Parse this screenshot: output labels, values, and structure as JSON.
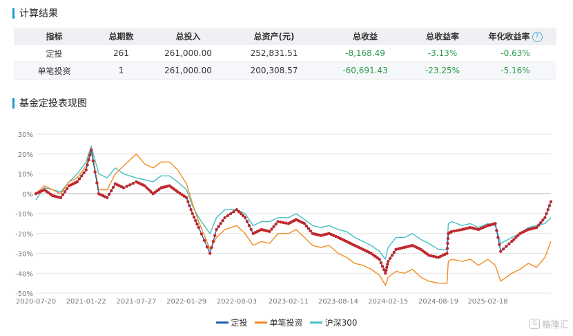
{
  "section1": {
    "title": "计算结果"
  },
  "section2": {
    "title": "基金定投表现图"
  },
  "table": {
    "headers": [
      "指标",
      "总期数",
      "总投入",
      "总资产(元)",
      "总收益",
      "总收益率",
      "年化收益率"
    ],
    "help_icon": "question-circle-icon",
    "rows": [
      [
        "定投",
        "261",
        "261,000.00",
        "252,831.51",
        "-8,168.49",
        "-3.13%",
        "-0.63%"
      ],
      [
        "单笔投资",
        "1",
        "261,000.00",
        "200,308.57",
        "-60,691.43",
        "-23.25%",
        "-5.16%"
      ]
    ]
  },
  "watermark": {
    "icon": "gelonghui-logo-icon",
    "text": "格隆汇"
  },
  "chart_data": {
    "type": "line",
    "ylim": [
      -50,
      30
    ],
    "yticks": [
      "30%",
      "20%",
      "10%",
      "0%",
      "-10%",
      "-20%",
      "-30%",
      "-40%",
      "-50%"
    ],
    "xticks": [
      "2020-07-20",
      "2021-01-22",
      "2021-07-27",
      "2022-01-29",
      "2022-08-03",
      "2023-02-11",
      "2023-08-14",
      "2024-02-15",
      "2024-08-19",
      "2025-02-18"
    ],
    "x_range": [
      "2020-07-20",
      "2025-10-10"
    ],
    "grid": true,
    "legend_position": "bottom",
    "series": [
      {
        "name": "定投",
        "color": "#1f5fa8",
        "marker_color": "#c0282d",
        "x": [
          "2020-07-20",
          "2020-08-20",
          "2020-09-20",
          "2020-10-20",
          "2020-11-20",
          "2020-12-20",
          "2021-01-22",
          "2021-02-10",
          "2021-03-10",
          "2021-04-10",
          "2021-05-10",
          "2021-06-10",
          "2021-07-27",
          "2021-08-27",
          "2021-09-27",
          "2021-10-27",
          "2021-11-27",
          "2021-12-27",
          "2022-01-29",
          "2022-02-20",
          "2022-03-15",
          "2022-04-26",
          "2022-05-20",
          "2022-06-20",
          "2022-08-03",
          "2022-09-03",
          "2022-10-03",
          "2022-11-03",
          "2022-12-03",
          "2023-01-03",
          "2023-02-11",
          "2023-03-11",
          "2023-04-11",
          "2023-05-11",
          "2023-06-11",
          "2023-07-11",
          "2023-08-14",
          "2023-09-14",
          "2023-10-14",
          "2023-11-14",
          "2023-12-14",
          "2024-01-14",
          "2024-02-05",
          "2024-02-15",
          "2024-03-15",
          "2024-04-15",
          "2024-05-15",
          "2024-06-15",
          "2024-07-15",
          "2024-08-19",
          "2024-09-20",
          "2024-09-25",
          "2024-10-08",
          "2024-11-15",
          "2024-12-15",
          "2025-01-15",
          "2025-02-18",
          "2025-03-18",
          "2025-04-07",
          "2025-05-18",
          "2025-06-18",
          "2025-07-18",
          "2025-08-18",
          "2025-09-18",
          "2025-10-10"
        ],
        "values": [
          0,
          2,
          -1,
          -2,
          4,
          6,
          12,
          22,
          0,
          -2,
          5,
          3,
          6,
          4,
          0,
          3,
          4,
          1,
          -2,
          -10,
          -17,
          -30,
          -18,
          -12,
          -8,
          -12,
          -20,
          -18,
          -19,
          -14,
          -15,
          -13,
          -15,
          -20,
          -21,
          -20,
          -22,
          -24,
          -26,
          -28,
          -30,
          -33,
          -40,
          -34,
          -28,
          -27,
          -26,
          -28,
          -31,
          -32,
          -30,
          -20,
          -19,
          -18,
          -17,
          -18,
          -16,
          -15,
          -29,
          -24,
          -20,
          -18,
          -17,
          -12,
          -4
        ]
      },
      {
        "name": "单笔投资",
        "color": "#f08c1e",
        "x": [
          "2020-07-20",
          "2020-08-20",
          "2020-09-20",
          "2020-10-20",
          "2020-11-20",
          "2020-12-20",
          "2021-01-22",
          "2021-02-10",
          "2021-03-10",
          "2021-04-10",
          "2021-05-10",
          "2021-06-10",
          "2021-07-27",
          "2021-08-27",
          "2021-09-27",
          "2021-10-27",
          "2021-11-27",
          "2021-12-27",
          "2022-01-29",
          "2022-02-20",
          "2022-03-15",
          "2022-04-26",
          "2022-05-20",
          "2022-06-20",
          "2022-08-03",
          "2022-09-03",
          "2022-10-03",
          "2022-11-03",
          "2022-12-03",
          "2023-01-03",
          "2023-02-11",
          "2023-03-11",
          "2023-04-11",
          "2023-05-11",
          "2023-06-11",
          "2023-07-11",
          "2023-08-14",
          "2023-09-14",
          "2023-10-14",
          "2023-11-14",
          "2023-12-14",
          "2024-01-14",
          "2024-02-05",
          "2024-02-15",
          "2024-03-15",
          "2024-04-15",
          "2024-05-15",
          "2024-06-15",
          "2024-07-15",
          "2024-08-19",
          "2024-09-20",
          "2024-09-25",
          "2024-10-08",
          "2024-11-15",
          "2024-12-15",
          "2025-01-15",
          "2025-02-18",
          "2025-03-18",
          "2025-04-07",
          "2025-05-18",
          "2025-06-18",
          "2025-07-18",
          "2025-08-18",
          "2025-09-18",
          "2025-10-10"
        ],
        "values": [
          0,
          4,
          2,
          0,
          6,
          8,
          14,
          23,
          2,
          2,
          10,
          14,
          20,
          15,
          13,
          16,
          16,
          12,
          5,
          -5,
          -14,
          -28,
          -22,
          -18,
          -16,
          -20,
          -26,
          -24,
          -25,
          -20,
          -20,
          -18,
          -22,
          -26,
          -27,
          -26,
          -30,
          -32,
          -35,
          -36,
          -38,
          -41,
          -46,
          -42,
          -39,
          -40,
          -38,
          -42,
          -44,
          -45,
          -45,
          -34,
          -33,
          -34,
          -33,
          -36,
          -33,
          -36,
          -44,
          -40,
          -38,
          -35,
          -37,
          -32,
          -24
        ]
      },
      {
        "name": "沪深300",
        "color": "#46bfc4",
        "x": [
          "2020-07-20",
          "2020-08-20",
          "2020-09-20",
          "2020-10-20",
          "2020-11-20",
          "2020-12-20",
          "2021-01-22",
          "2021-02-10",
          "2021-03-10",
          "2021-04-10",
          "2021-05-10",
          "2021-06-10",
          "2021-07-27",
          "2021-08-27",
          "2021-09-27",
          "2021-10-27",
          "2021-11-27",
          "2021-12-27",
          "2022-01-29",
          "2022-02-20",
          "2022-03-15",
          "2022-04-26",
          "2022-05-20",
          "2022-06-20",
          "2022-08-03",
          "2022-09-03",
          "2022-10-03",
          "2022-11-03",
          "2022-12-03",
          "2023-01-03",
          "2023-02-11",
          "2023-03-11",
          "2023-04-11",
          "2023-05-11",
          "2023-06-11",
          "2023-07-11",
          "2023-08-14",
          "2023-09-14",
          "2023-10-14",
          "2023-11-14",
          "2023-12-14",
          "2024-01-14",
          "2024-02-05",
          "2024-02-15",
          "2024-03-15",
          "2024-04-15",
          "2024-05-15",
          "2024-06-15",
          "2024-07-15",
          "2024-08-19",
          "2024-09-20",
          "2024-09-25",
          "2024-10-08",
          "2024-11-15",
          "2024-12-15",
          "2025-01-15",
          "2025-02-18",
          "2025-03-18",
          "2025-04-07",
          "2025-05-18",
          "2025-06-18",
          "2025-07-18",
          "2025-08-18",
          "2025-09-18",
          "2025-10-10"
        ],
        "values": [
          -3,
          3,
          2,
          1,
          6,
          10,
          16,
          24,
          10,
          8,
          13,
          10,
          8,
          7,
          6,
          9,
          9,
          6,
          2,
          -6,
          -12,
          -20,
          -12,
          -8,
          -8,
          -10,
          -16,
          -14,
          -14,
          -12,
          -12,
          -10,
          -13,
          -16,
          -17,
          -16,
          -18,
          -19,
          -22,
          -24,
          -26,
          -29,
          -33,
          -27,
          -22,
          -22,
          -20,
          -23,
          -25,
          -28,
          -28,
          -15,
          -14,
          -16,
          -15,
          -17,
          -15,
          -16,
          -25,
          -22,
          -20,
          -17,
          -16,
          -15,
          -12
        ]
      }
    ]
  }
}
